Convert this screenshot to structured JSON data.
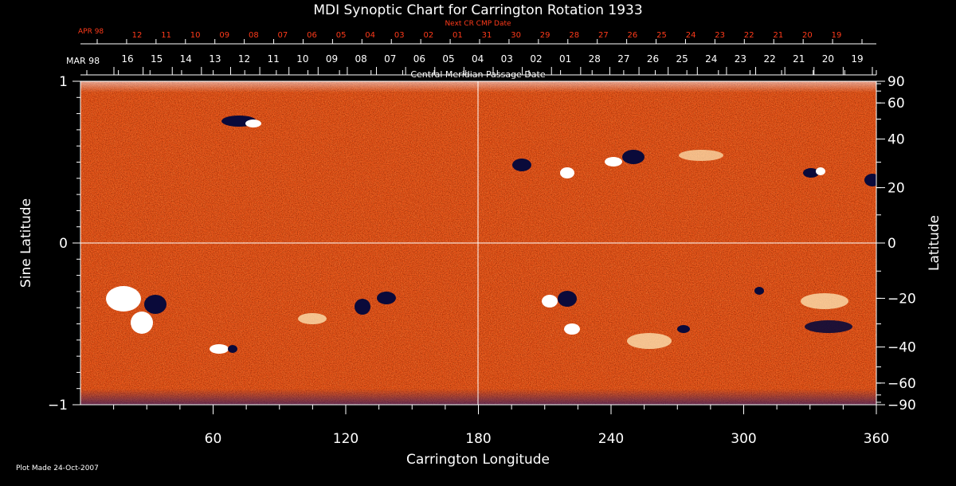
{
  "chart_data": {
    "type": "heatmap",
    "title": "MDI Synoptic Chart for Carrington Rotation 1933",
    "xlabel": "Carrington Longitude",
    "ylabel_left": "Sine Latitude",
    "ylabel_right": "Latitude",
    "xlim": [
      0,
      360
    ],
    "ylim": [
      -1,
      1
    ],
    "x_ticks": [
      60,
      120,
      180,
      240,
      300,
      360
    ],
    "y_left_ticks": [
      {
        "value": 1,
        "label": "1"
      },
      {
        "value": 0,
        "label": "0"
      },
      {
        "value": -1,
        "label": "−1"
      }
    ],
    "y_right_ticks": [
      {
        "lat": 90,
        "label": "90"
      },
      {
        "lat": 60,
        "label": "60"
      },
      {
        "lat": 40,
        "label": "40"
      },
      {
        "lat": 20,
        "label": "20"
      },
      {
        "lat": 0,
        "label": "0"
      },
      {
        "lat": -20,
        "label": "−20"
      },
      {
        "lat": -40,
        "label": "−40"
      },
      {
        "lat": -60,
        "label": "−60"
      },
      {
        "lat": -90,
        "label": "−90"
      }
    ],
    "cmp_axis": {
      "label": "Central Meridian Passage Date",
      "month_label": "MAR 98",
      "days": [
        "16",
        "15",
        "14",
        "13",
        "12",
        "11",
        "10",
        "09",
        "08",
        "07",
        "06",
        "05",
        "04",
        "03",
        "02",
        "01",
        "28",
        "27",
        "26",
        "25",
        "24",
        "23",
        "22",
        "21",
        "20",
        "19"
      ]
    },
    "next_cr_axis": {
      "label": "Next CR CMP Date",
      "month_label": "APR 98",
      "days": [
        "12",
        "11",
        "10",
        "09",
        "08",
        "07",
        "06",
        "05",
        "04",
        "03",
        "02",
        "01",
        "31",
        "30",
        "29",
        "28",
        "27",
        "26",
        "25",
        "24",
        "23",
        "22",
        "21",
        "20",
        "19"
      ]
    },
    "footer": "Plot Made 24-Oct-2007",
    "colors": {
      "background": "#000000",
      "field_base": "#e8561a",
      "positive_polarity": "#ffffff",
      "negative_polarity": "#0a0a3a",
      "grid": "#ffffff",
      "top_axis_text": "#ff3a1a"
    }
  }
}
